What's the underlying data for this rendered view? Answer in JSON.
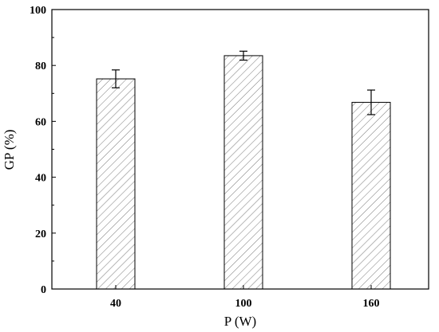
{
  "chart_data": {
    "type": "bar",
    "xlabel": "P (W)",
    "ylabel": "GP (%)",
    "categories": [
      "40",
      "100",
      "160"
    ],
    "series": [
      {
        "values": [
          75.2,
          83.5,
          66.8
        ],
        "error": [
          3.2,
          1.6,
          4.4
        ]
      }
    ],
    "ylim": [
      0,
      100
    ],
    "yticks": [
      0,
      20,
      40,
      60,
      80,
      100
    ],
    "ytick_labels": [
      "0",
      "20",
      "40",
      "60",
      "80",
      "100"
    ],
    "grid": false,
    "bar_fill": "hatched",
    "colors": {
      "bar_edge": "#000000",
      "hatch": "#777777",
      "axis": "#000000"
    }
  }
}
